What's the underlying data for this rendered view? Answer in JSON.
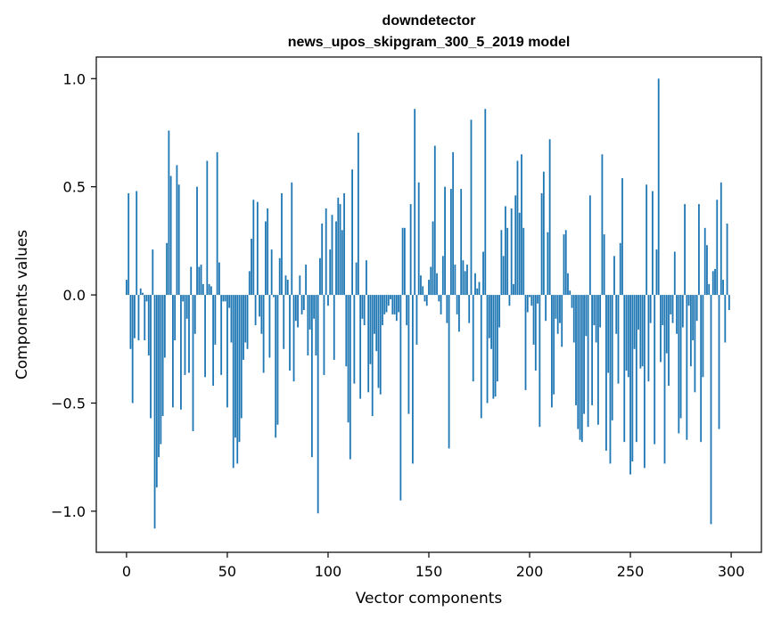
{
  "chart_data": {
    "type": "bar",
    "title": "downdetector",
    "subtitle": "news_upos_skipgram_300_5_2019 model",
    "xlabel": "Vector components",
    "ylabel": "Components values",
    "xlim": [
      -15,
      315
    ],
    "ylim": [
      -1.19,
      1.1
    ],
    "xticks": [
      0,
      50,
      100,
      150,
      200,
      250,
      300
    ],
    "xtick_labels": [
      "0",
      "50",
      "100",
      "150",
      "200",
      "250",
      "300"
    ],
    "yticks": [
      -1.0,
      -0.5,
      0.0,
      0.5,
      1.0
    ],
    "ytick_labels": [
      "−1.0",
      "−0.5",
      "0.0",
      "0.5",
      "1.0"
    ],
    "grid": false,
    "bar_color": "#1f77b4",
    "x_start": 0,
    "values": [
      0.07,
      0.47,
      -0.25,
      -0.5,
      -0.2,
      0.48,
      -0.21,
      0.03,
      0.01,
      -0.21,
      -0.03,
      -0.28,
      -0.57,
      0.21,
      -1.08,
      -0.89,
      -0.75,
      -0.69,
      -0.56,
      -0.29,
      0.24,
      0.76,
      0.55,
      -0.52,
      -0.21,
      0.6,
      0.51,
      -0.53,
      -0.03,
      -0.37,
      -0.11,
      -0.36,
      0.13,
      -0.63,
      -0.18,
      0.5,
      0.13,
      0.14,
      0.05,
      -0.38,
      0.62,
      0.05,
      0.04,
      -0.42,
      -0.23,
      0.66,
      0.15,
      -0.37,
      -0.03,
      -0.03,
      -0.52,
      -0.06,
      -0.22,
      -0.8,
      -0.66,
      -0.78,
      -0.68,
      -0.57,
      -0.3,
      -0.22,
      -0.25,
      0.11,
      0.26,
      0.44,
      -0.14,
      0.43,
      -0.1,
      -0.18,
      -0.36,
      0.34,
      0.4,
      -0.29,
      0.21,
      -0.01,
      -0.66,
      -0.6,
      0.17,
      0.47,
      -0.25,
      0.09,
      0.07,
      -0.35,
      0.52,
      -0.4,
      -0.12,
      -0.15,
      0.09,
      -0.09,
      -0.07,
      0.14,
      -0.28,
      -0.16,
      -0.75,
      -0.11,
      -0.28,
      -1.01,
      0.17,
      0.33,
      -0.37,
      0.4,
      -0.05,
      0.21,
      0.37,
      -0.3,
      0.34,
      0.45,
      0.42,
      0.3,
      0.47,
      -0.33,
      -0.59,
      -0.76,
      0.58,
      -0.41,
      0.15,
      0.75,
      -0.48,
      -0.11,
      -0.14,
      0.16,
      -0.45,
      -0.32,
      -0.56,
      -0.18,
      -0.26,
      -0.43,
      -0.46,
      -0.14,
      -0.09,
      -0.08,
      -0.05,
      -0.02,
      -0.09,
      -0.09,
      -0.12,
      -0.08,
      -0.95,
      0.31,
      0.31,
      -0.14,
      -0.55,
      0.42,
      -0.78,
      0.86,
      -0.23,
      0.52,
      0.09,
      0.04,
      -0.03,
      -0.05,
      0.07,
      0.13,
      0.34,
      0.69,
      0.1,
      -0.03,
      -0.09,
      0.18,
      0.5,
      -0.13,
      -0.71,
      0.49,
      0.66,
      0.14,
      -0.09,
      -0.17,
      0.49,
      0.16,
      0.11,
      0.14,
      -0.13,
      0.81,
      -0.4,
      0.1,
      0.03,
      0.06,
      -0.57,
      0.2,
      0.86,
      -0.5,
      -0.2,
      -0.25,
      -0.48,
      -0.47,
      -0.4,
      -0.15,
      0.3,
      0.18,
      0.41,
      0.31,
      -0.05,
      0.4,
      0.05,
      0.46,
      0.62,
      0.38,
      0.65,
      0.31,
      -0.44,
      -0.08,
      -0.01,
      -0.05,
      -0.23,
      -0.35,
      -0.04,
      -0.61,
      0.47,
      0.57,
      -0.12,
      0.29,
      0.72,
      -0.52,
      -0.46,
      -0.11,
      -0.18,
      -0.13,
      -0.24,
      0.28,
      0.3,
      0.1,
      0.02,
      -0.06,
      -0.22,
      -0.51,
      -0.62,
      -0.67,
      -0.68,
      -0.55,
      -0.19,
      -0.61,
      0.46,
      -0.51,
      -0.14,
      -0.22,
      -0.6,
      -0.15,
      0.65,
      0.28,
      -0.72,
      -0.36,
      -0.78,
      -0.58,
      0.18,
      -0.18,
      -0.41,
      0.24,
      0.54,
      -0.68,
      -0.35,
      -0.38,
      -0.83,
      -0.77,
      -0.25,
      -0.68,
      -0.16,
      -0.34,
      -0.33,
      -0.8,
      0.51,
      -0.4,
      -0.13,
      0.48,
      -0.69,
      0.21,
      1.0,
      -0.31,
      -0.14,
      -0.78,
      -0.27,
      -0.42,
      -0.09,
      -0.13,
      0.2,
      -0.18,
      -0.64,
      -0.57,
      -0.15,
      0.42,
      -0.67,
      -0.05,
      -0.33,
      -0.21,
      -0.45,
      -0.12,
      0.42,
      -0.68,
      -0.38,
      0.31,
      0.23,
      0.05,
      -1.06,
      0.11,
      0.12,
      0.44,
      -0.62,
      0.52,
      0.07,
      -0.22,
      0.33,
      -0.07
    ]
  }
}
